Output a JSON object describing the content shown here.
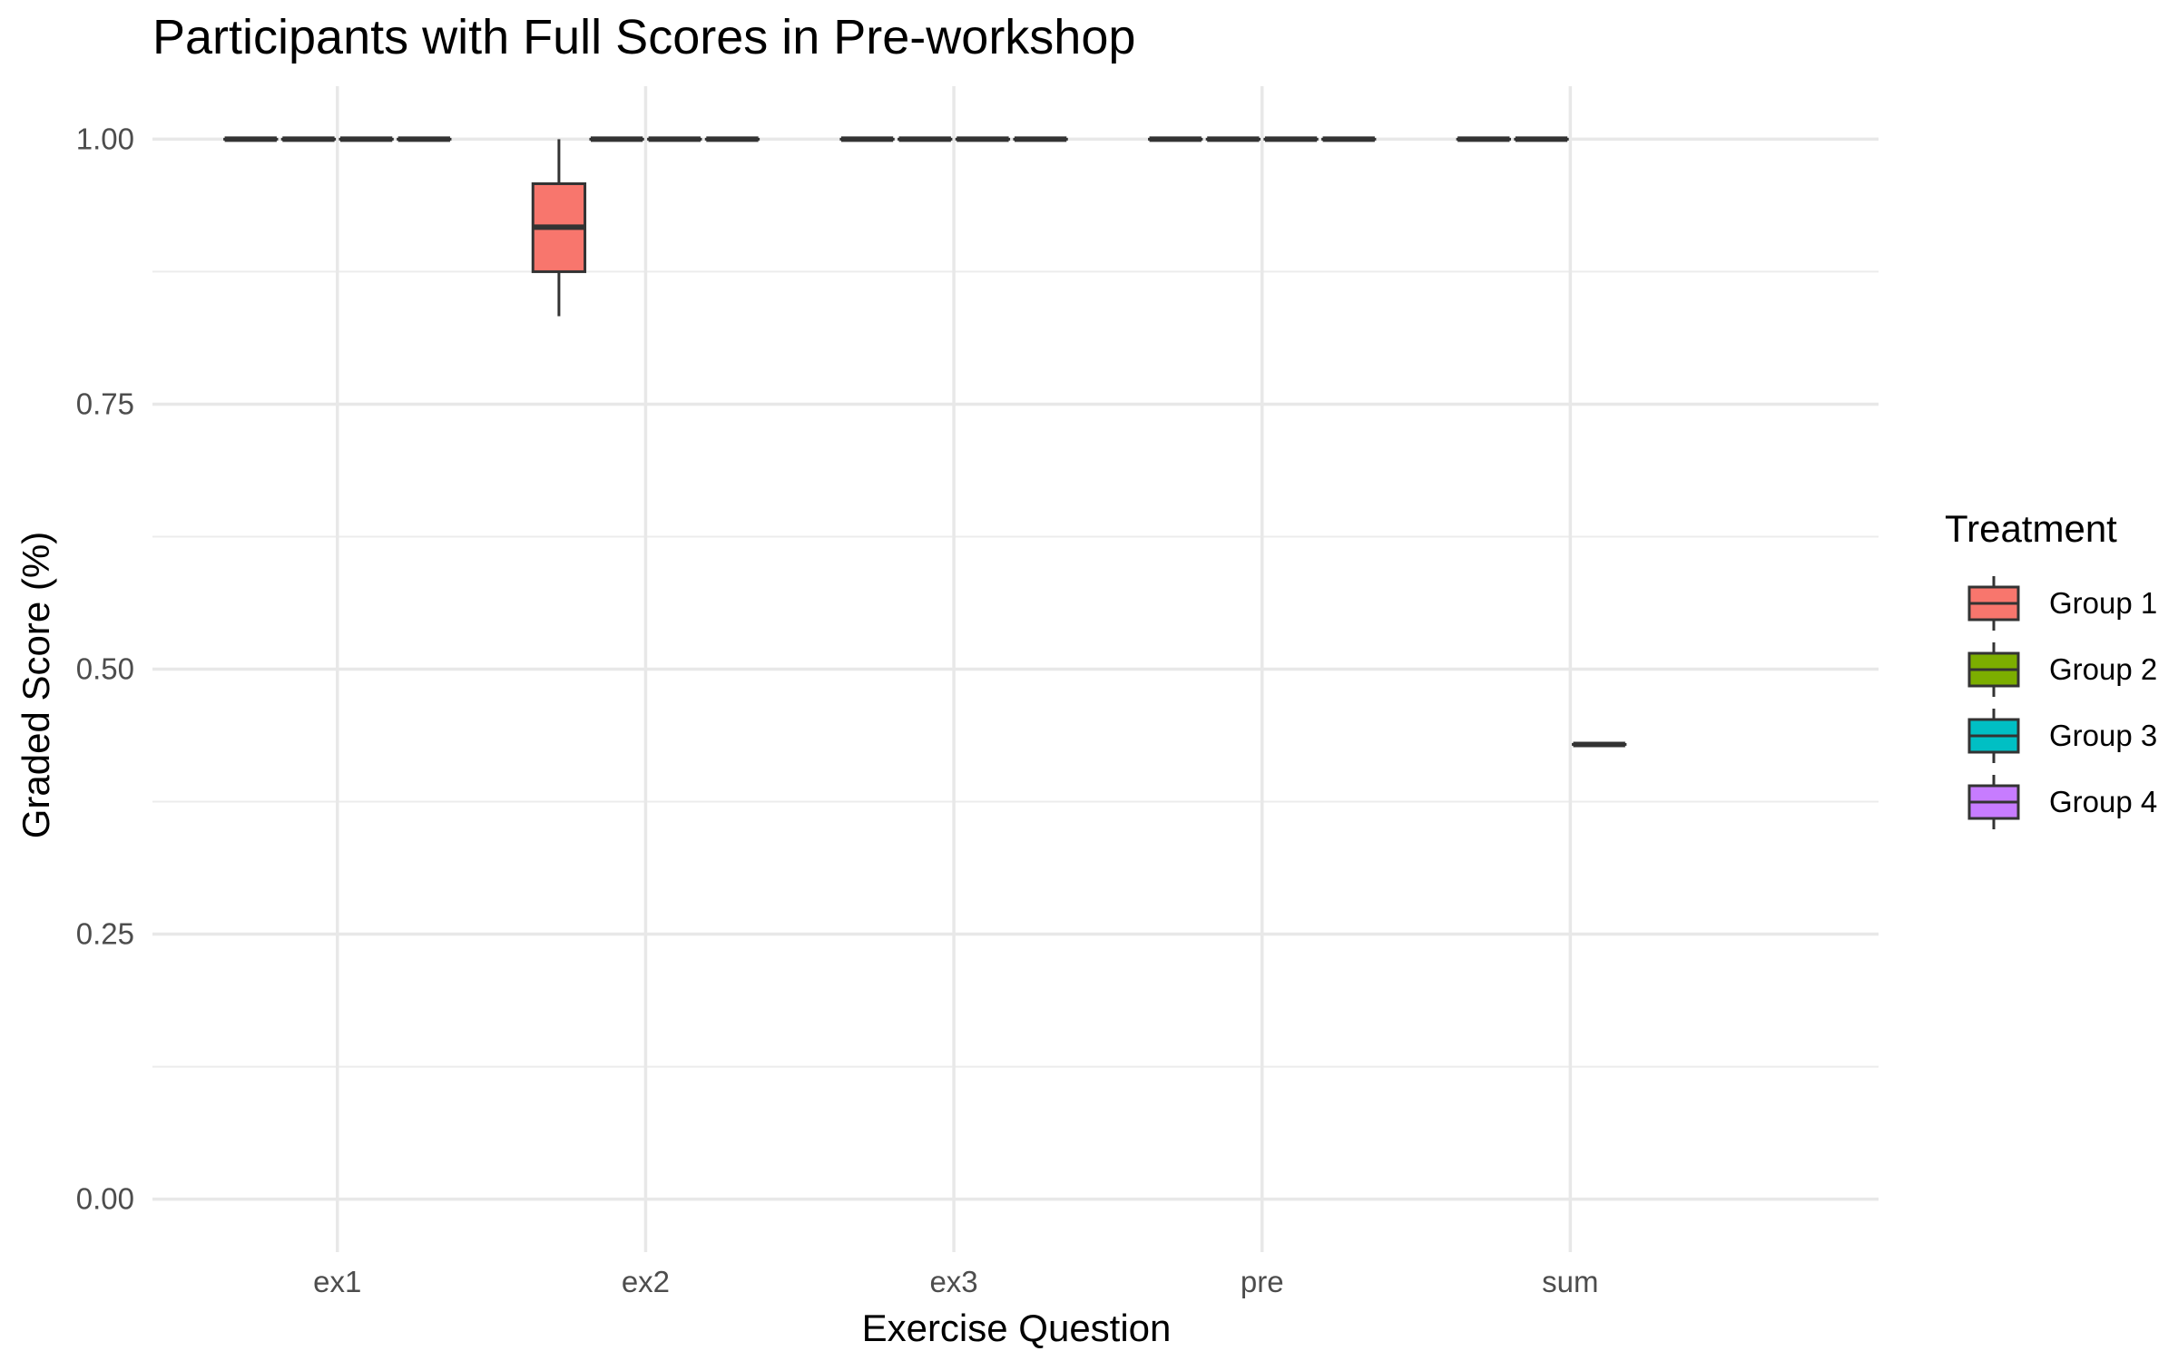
{
  "chart_data": {
    "type": "boxplot",
    "title": "Participants with Full Scores in Pre-workshop",
    "xlabel": "Exercise Question",
    "ylabel": "Graded Score (%)",
    "categories": [
      "ex1",
      "ex2",
      "ex3",
      "pre",
      "sum"
    ],
    "ylim": [
      -0.05,
      1.05
    ],
    "yticks": [
      0.0,
      0.25,
      0.5,
      0.75,
      1.0
    ],
    "ytick_labels": [
      "0.00",
      "0.25",
      "0.50",
      "0.75",
      "1.00"
    ],
    "grid": true,
    "legend_title": "Treatment",
    "legend_position": "right",
    "series": [
      {
        "name": "Group 1",
        "color": "#F8766D",
        "boxes": [
          {
            "category": "ex1",
            "min": 1.0,
            "q1": 1.0,
            "median": 1.0,
            "q3": 1.0,
            "max": 1.0
          },
          {
            "category": "ex2",
            "min": 0.833,
            "q1": 0.875,
            "median": 0.917,
            "q3": 0.958,
            "max": 1.0
          },
          {
            "category": "ex3",
            "min": 1.0,
            "q1": 1.0,
            "median": 1.0,
            "q3": 1.0,
            "max": 1.0
          },
          {
            "category": "pre",
            "min": 1.0,
            "q1": 1.0,
            "median": 1.0,
            "q3": 1.0,
            "max": 1.0
          },
          {
            "category": "sum",
            "min": 1.0,
            "q1": 1.0,
            "median": 1.0,
            "q3": 1.0,
            "max": 1.0
          }
        ]
      },
      {
        "name": "Group 2",
        "color": "#7CAE00",
        "boxes": [
          {
            "category": "ex1",
            "min": 1.0,
            "q1": 1.0,
            "median": 1.0,
            "q3": 1.0,
            "max": 1.0
          },
          {
            "category": "ex2",
            "min": 1.0,
            "q1": 1.0,
            "median": 1.0,
            "q3": 1.0,
            "max": 1.0
          },
          {
            "category": "ex3",
            "min": 1.0,
            "q1": 1.0,
            "median": 1.0,
            "q3": 1.0,
            "max": 1.0
          },
          {
            "category": "pre",
            "min": 1.0,
            "q1": 1.0,
            "median": 1.0,
            "q3": 1.0,
            "max": 1.0
          },
          {
            "category": "sum",
            "min": 1.0,
            "q1": 1.0,
            "median": 1.0,
            "q3": 1.0,
            "max": 1.0
          }
        ]
      },
      {
        "name": "Group 3",
        "color": "#00BFC4",
        "boxes": [
          {
            "category": "ex1",
            "min": 1.0,
            "q1": 1.0,
            "median": 1.0,
            "q3": 1.0,
            "max": 1.0
          },
          {
            "category": "ex2",
            "min": 1.0,
            "q1": 1.0,
            "median": 1.0,
            "q3": 1.0,
            "max": 1.0
          },
          {
            "category": "ex3",
            "min": 1.0,
            "q1": 1.0,
            "median": 1.0,
            "q3": 1.0,
            "max": 1.0
          },
          {
            "category": "pre",
            "min": 1.0,
            "q1": 1.0,
            "median": 1.0,
            "q3": 1.0,
            "max": 1.0
          },
          {
            "category": "sum",
            "min": 0.429,
            "q1": 0.429,
            "median": 0.429,
            "q3": 0.429,
            "max": 0.429
          }
        ]
      },
      {
        "name": "Group 4",
        "color": "#C77CFF",
        "boxes": [
          {
            "category": "ex1",
            "min": 1.0,
            "q1": 1.0,
            "median": 1.0,
            "q3": 1.0,
            "max": 1.0
          },
          {
            "category": "ex2",
            "min": 1.0,
            "q1": 1.0,
            "median": 1.0,
            "q3": 1.0,
            "max": 1.0
          },
          {
            "category": "ex3",
            "min": 1.0,
            "q1": 1.0,
            "median": 1.0,
            "q3": 1.0,
            "max": 1.0
          },
          {
            "category": "pre",
            "min": 1.0,
            "q1": 1.0,
            "median": 1.0,
            "q3": 1.0,
            "max": 1.0
          }
        ]
      }
    ]
  }
}
